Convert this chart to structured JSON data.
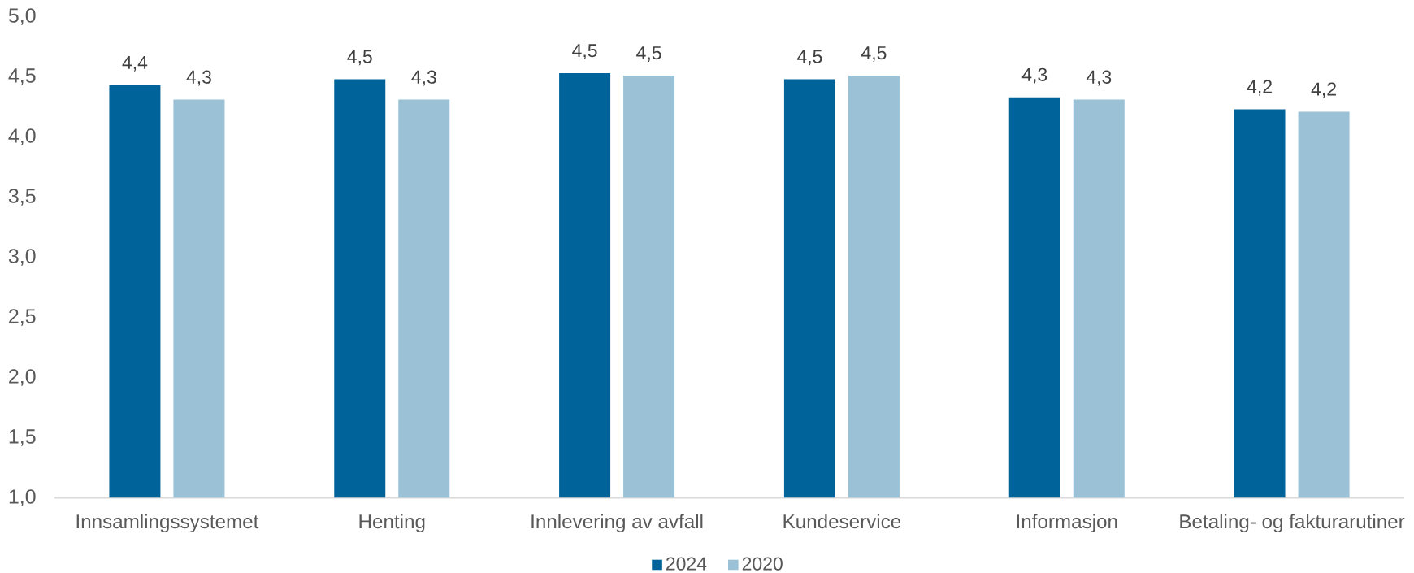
{
  "chart_data": {
    "type": "bar",
    "categories": [
      "Innsamlingssystemet",
      "Henting",
      "Innlevering av avfall",
      "Kundeservice",
      "Informasjon",
      "Betaling- og fakturarutiner"
    ],
    "series": [
      {
        "name": "2024",
        "color": "#00639a",
        "values": [
          4.43,
          4.48,
          4.53,
          4.48,
          4.33,
          4.23
        ],
        "value_labels": [
          "4,4",
          "4,5",
          "4,5",
          "4,5",
          "4,3",
          "4,2"
        ]
      },
      {
        "name": "2020",
        "color": "#9ac1d6",
        "values": [
          4.31,
          4.31,
          4.51,
          4.51,
          4.31,
          4.21
        ],
        "value_labels": [
          "4,3",
          "4,3",
          "4,5",
          "4,5",
          "4,3",
          "4,2"
        ]
      }
    ],
    "ylim": [
      1,
      5
    ],
    "yticks": [
      {
        "value": 1,
        "label": "1,0"
      },
      {
        "value": 1.5,
        "label": "1,5"
      },
      {
        "value": 2,
        "label": "2,0"
      },
      {
        "value": 2.5,
        "label": "2,5"
      },
      {
        "value": 3,
        "label": "3,0"
      },
      {
        "value": 3.5,
        "label": "3,5"
      },
      {
        "value": 4,
        "label": "4,0"
      },
      {
        "value": 4.5,
        "label": "4,5"
      },
      {
        "value": 5,
        "label": "5,0"
      }
    ],
    "legend": "bottom"
  }
}
